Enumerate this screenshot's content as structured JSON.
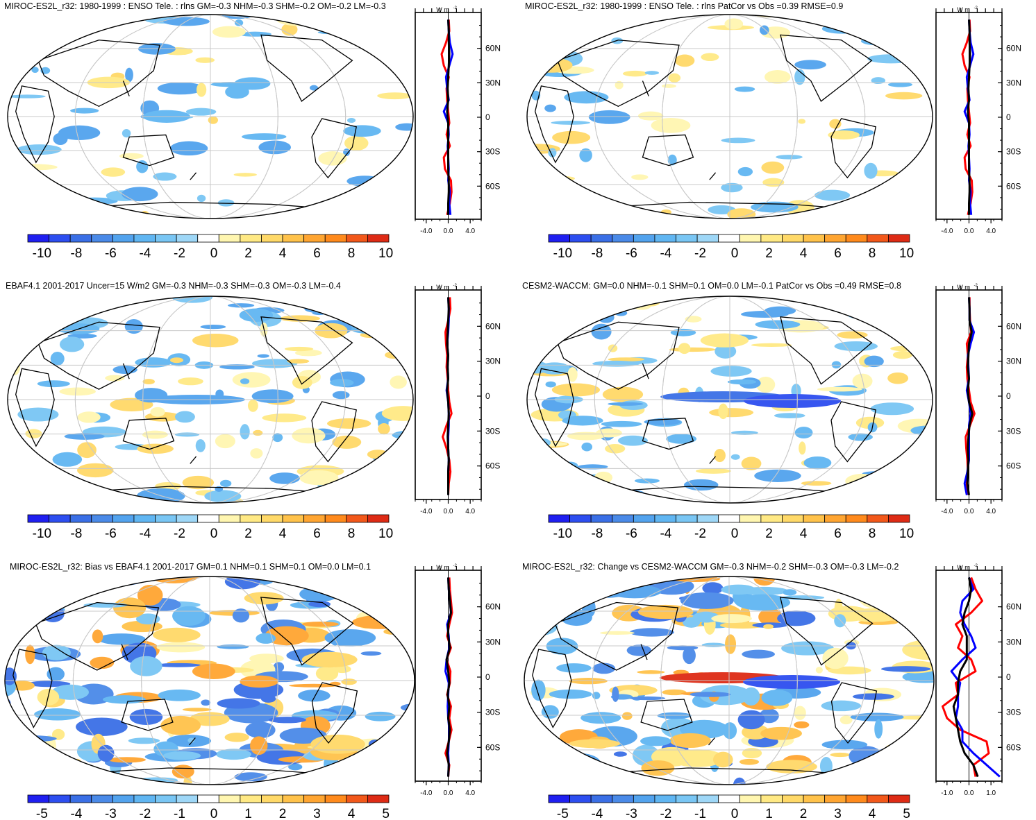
{
  "colors": {
    "neg": [
      "#1f1ff0",
      "#2d4ef0",
      "#3a6fe6",
      "#4a8ae8",
      "#52a3ee",
      "#60b6f2",
      "#79c6f4",
      "#9ed7f7"
    ],
    "pos": [
      "#fff6b0",
      "#ffe984",
      "#ffd968",
      "#ffc24a",
      "#ffa531",
      "#ff8a1c",
      "#f2581a",
      "#de2b15"
    ],
    "land": "#000000",
    "grid": "#c8c8c8",
    "line_red": "#ff0000",
    "line_blue": "#0000ff",
    "line_black": "#000000"
  },
  "chart_data": [
    {
      "type": "heatmap",
      "title": "MIROC-ES2L_r32: 1980-1999 : ENSO Tele. : rlns GM=-0.3 NHM=-0.3 SHM=-0.2 OM=-0.2 LM=-0.3",
      "colorbar": {
        "labels": [
          "-10",
          "-8",
          "-6",
          "-4",
          "-2",
          "0",
          "2",
          "4",
          "6",
          "8",
          "10"
        ]
      },
      "profile": {
        "unit_label": "W m",
        "unit_sup": "-2",
        "xlim": [
          -6,
          6
        ],
        "xticks": [
          "-4.0",
          "0.0",
          "4.0"
        ],
        "yticks": [
          "60N",
          "30N",
          "0",
          "30S",
          "60S"
        ],
        "series": [
          {
            "name": "red",
            "x": [
              0.1,
              0.2,
              -0.4,
              -1.2,
              -0.8,
              0.1,
              -0.3,
              -0.2,
              0.0,
              0.2,
              -0.3,
              0.3,
              -0.8,
              -0.6,
              0.5,
              0.6,
              0.3,
              -0.2
            ]
          },
          {
            "name": "blue",
            "x": [
              0.0,
              0.1,
              0.3,
              0.8,
              0.2,
              -0.4,
              -0.2,
              0.1,
              -0.8,
              0.0,
              0.1,
              -0.1,
              0.0,
              0.1,
              0.0,
              0.3,
              0.2,
              0.4
            ]
          },
          {
            "name": "black",
            "x": [
              0.0,
              0.1,
              0.1,
              0.2,
              0.1,
              0.0,
              -0.1,
              0.0,
              -0.2,
              0.0,
              0.0,
              0.0,
              0.0,
              0.0,
              0.1,
              0.1,
              0.0,
              0.0
            ]
          }
        ]
      }
    },
    {
      "type": "heatmap",
      "title": "MIROC-ES2L_r32: 1980-1999 : ENSO Tele. : rlns PatCor vs Obs =0.39 RMSE=0.9",
      "colorbar": {
        "labels": [
          "-10",
          "-8",
          "-6",
          "-4",
          "-2",
          "0",
          "2",
          "4",
          "6",
          "8",
          "10"
        ]
      },
      "profile": {
        "unit_label": "W m",
        "unit_sup": "-2",
        "xlim": [
          -6,
          6
        ],
        "xticks": [
          "-4.0",
          "0.0",
          "4.0"
        ],
        "yticks": [
          "60N",
          "30N",
          "0",
          "30S",
          "60S"
        ],
        "series": [
          {
            "name": "red",
            "x": [
              0.1,
              0.2,
              -0.4,
              -1.2,
              -0.8,
              0.1,
              -0.3,
              -0.2,
              0.0,
              0.2,
              -0.3,
              0.3,
              -0.8,
              -0.6,
              0.5,
              0.6,
              0.3,
              -0.2
            ]
          },
          {
            "name": "blue",
            "x": [
              0.0,
              0.1,
              0.3,
              0.8,
              0.2,
              -0.4,
              -0.2,
              0.1,
              -0.8,
              0.0,
              0.1,
              -0.1,
              0.0,
              0.1,
              0.0,
              0.3,
              0.2,
              0.4
            ]
          },
          {
            "name": "black",
            "x": [
              0.0,
              0.1,
              0.1,
              0.2,
              0.1,
              0.0,
              -0.1,
              0.0,
              -0.2,
              0.0,
              0.0,
              0.0,
              0.0,
              0.0,
              0.1,
              0.1,
              0.0,
              0.0
            ]
          }
        ]
      }
    },
    {
      "type": "heatmap",
      "title": "EBAF4.1 2001-2017 Uncer=15 W/m2 GM=-0.3 NHM=-0.3 SHM=-0.3 OM=-0.3 LM=-0.4",
      "colorbar": {
        "labels": [
          "-10",
          "-8",
          "-6",
          "-4",
          "-2",
          "0",
          "2",
          "4",
          "6",
          "8",
          "10"
        ]
      },
      "profile": {
        "unit_label": "W m",
        "unit_sup": "-2",
        "xlim": [
          -6,
          6
        ],
        "xticks": [
          "-4.0",
          "0.0",
          "4.0"
        ],
        "yticks": [
          "60N",
          "30N",
          "0",
          "30S",
          "60S"
        ],
        "series": [
          {
            "name": "red",
            "x": [
              0.3,
              0.4,
              0.0,
              -0.5,
              -0.4,
              -0.2,
              -0.3,
              -0.1,
              0.0,
              0.2,
              0.6,
              -0.3,
              -1.0,
              -0.3,
              0.2,
              0.4,
              0.1,
              0.0
            ]
          },
          {
            "name": "blue",
            "x": [
              0.0,
              0.1,
              0.1,
              0.0,
              -0.2,
              0.0,
              -0.1,
              0.0,
              -0.3,
              0.0,
              0.1,
              0.1,
              0.0,
              0.0,
              0.1,
              0.0,
              0.0,
              0.0
            ]
          },
          {
            "name": "black",
            "x": [
              0.0,
              0.1,
              0.0,
              -0.1,
              -0.2,
              0.0,
              -0.1,
              0.0,
              -0.2,
              0.0,
              0.1,
              0.0,
              -0.1,
              0.0,
              0.1,
              0.0,
              0.0,
              0.0
            ]
          }
        ]
      }
    },
    {
      "type": "heatmap",
      "title": "CESM2-WACCM: GM=0.0 NHM=-0.1 SHM=0.1 OM=0.0 LM=-0.1 PatCor vs Obs =0.49 RMSE=0.8",
      "colorbar": {
        "labels": [
          "-10",
          "-8",
          "-6",
          "-4",
          "-2",
          "0",
          "2",
          "4",
          "6",
          "8",
          "10"
        ]
      },
      "profile": {
        "unit_label": "W m",
        "unit_sup": "-2",
        "xlim": [
          -6,
          6
        ],
        "xticks": [
          "-4.0",
          "0.0",
          "4.0"
        ],
        "yticks": [
          "60N",
          "30N",
          "0",
          "30S",
          "60S"
        ],
        "series": [
          {
            "name": "red",
            "x": [
              0.1,
              0.1,
              0.2,
              0.4,
              -0.4,
              -0.2,
              -0.4,
              -0.3,
              0.0,
              0.3,
              1.0,
              0.2,
              -0.6,
              -0.5,
              -0.3,
              -0.2,
              -0.4,
              -0.3
            ]
          },
          {
            "name": "blue",
            "x": [
              0.0,
              0.1,
              0.1,
              0.9,
              0.3,
              -0.2,
              -0.1,
              0.0,
              -0.4,
              0.0,
              0.3,
              0.0,
              0.0,
              0.0,
              0.0,
              -0.3,
              -0.8,
              -0.4
            ]
          },
          {
            "name": "black",
            "x": [
              0.0,
              0.1,
              0.1,
              0.5,
              0.0,
              -0.1,
              -0.2,
              0.0,
              -0.2,
              0.0,
              0.6,
              0.1,
              -0.1,
              -0.2,
              -0.1,
              -0.2,
              -0.3,
              0.0
            ]
          }
        ]
      }
    },
    {
      "type": "heatmap",
      "title": "MIROC-ES2L_r32: Bias vs EBAF4.1 2001-2017 GM=0.1 NHM=0.1 SHM=0.1 OM=0.0 LM=0.1",
      "colorbar": {
        "labels": [
          "-5",
          "-4",
          "-3",
          "-2",
          "-1",
          "0",
          "1",
          "2",
          "3",
          "4",
          "5"
        ]
      },
      "profile": {
        "unit_label": "W m",
        "unit_sup": "-2",
        "xlim": [
          -6,
          6
        ],
        "xticks": [
          "-4.0",
          "0.0",
          "4.0"
        ],
        "yticks": [
          "60N",
          "30N",
          "0",
          "30S",
          "60S"
        ],
        "series": [
          {
            "name": "red",
            "x": [
              0.2,
              0.3,
              0.5,
              0.7,
              0.2,
              -0.2,
              0.5,
              -0.3,
              0.4,
              0.3,
              -0.2,
              0.5,
              0.2,
              0.6,
              0.1,
              -0.5,
              0.2,
              0.0
            ]
          },
          {
            "name": "blue",
            "x": [
              0.0,
              0.1,
              0.3,
              0.5,
              -0.2,
              0.1,
              0.2,
              -0.3,
              -0.5,
              0.1,
              0.0,
              -0.1,
              0.0,
              0.2,
              0.1,
              0.0,
              0.1,
              0.0
            ]
          },
          {
            "name": "black",
            "x": [
              0.0,
              0.1,
              0.3,
              0.5,
              0.0,
              0.0,
              0.3,
              -0.3,
              0.0,
              0.2,
              -0.1,
              0.2,
              0.0,
              0.3,
              0.1,
              -0.2,
              0.1,
              0.0
            ]
          }
        ]
      }
    },
    {
      "type": "heatmap",
      "title": "MIROC-ES2L_r32: Change vs CESM2-WACCM GM=-0.3 NHM=-0.2 SHM=-0.3 OM=-0.3 LM=-0.2",
      "colorbar": {
        "labels": [
          "-5",
          "-4",
          "-3",
          "-2",
          "-1",
          "0",
          "1",
          "2",
          "3",
          "4",
          "5"
        ]
      },
      "profile": {
        "unit_label": "W m",
        "unit_sup": "-2",
        "xlim": [
          -1.5,
          1.5
        ],
        "xticks": [
          "-1.0",
          "0.0",
          "1.0"
        ],
        "yticks": [
          "60N",
          "30N",
          "0",
          "30S",
          "60S"
        ],
        "series": [
          {
            "name": "red",
            "x": [
              0.1,
              0.3,
              0.6,
              0.1,
              -0.6,
              -0.3,
              -0.5,
              0.1,
              0.3,
              -0.6,
              -0.5,
              -1.2,
              -1.0,
              -0.4,
              0.8,
              0.9,
              0.2,
              0.3
            ]
          },
          {
            "name": "blue",
            "x": [
              0.0,
              0.2,
              -0.3,
              -0.4,
              -0.2,
              0.1,
              0.3,
              -0.3,
              -0.8,
              -0.4,
              -0.5,
              -0.5,
              -0.6,
              -0.3,
              -0.3,
              0.2,
              0.8,
              1.4
            ]
          },
          {
            "name": "black",
            "x": [
              0.0,
              0.1,
              0.0,
              -0.2,
              -0.3,
              -0.1,
              -0.1,
              -0.1,
              -0.4,
              -0.5,
              -0.5,
              -0.7,
              -0.6,
              -0.5,
              -0.4,
              -0.2,
              0.2,
              0.4
            ]
          }
        ]
      }
    }
  ]
}
